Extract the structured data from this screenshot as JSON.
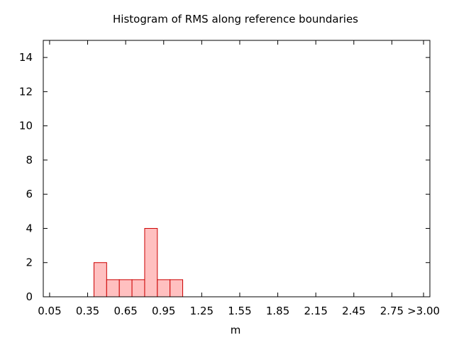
{
  "chart_data": {
    "type": "bar",
    "title": "Histogram of RMS along reference boundaries",
    "xlabel": "m",
    "ylabel": "",
    "bin_width": 0.1,
    "xlim": [
      0.0,
      3.05
    ],
    "ylim": [
      0,
      15
    ],
    "x_ticks": [
      {
        "value": 0.05,
        "label": "0.05"
      },
      {
        "value": 0.35,
        "label": "0.35"
      },
      {
        "value": 0.65,
        "label": "0.65"
      },
      {
        "value": 0.95,
        "label": "0.95"
      },
      {
        "value": 1.25,
        "label": "1.25"
      },
      {
        "value": 1.55,
        "label": "1.55"
      },
      {
        "value": 1.85,
        "label": "1.85"
      },
      {
        "value": 2.15,
        "label": "2.15"
      },
      {
        "value": 2.45,
        "label": "2.45"
      },
      {
        "value": 2.75,
        "label": "2.75"
      },
      {
        "value": 3.0,
        "label": ">3.00"
      }
    ],
    "y_ticks": [
      {
        "value": 0,
        "label": "0"
      },
      {
        "value": 2,
        "label": "2"
      },
      {
        "value": 4,
        "label": "4"
      },
      {
        "value": 6,
        "label": "6"
      },
      {
        "value": 8,
        "label": "8"
      },
      {
        "value": 10,
        "label": "10"
      },
      {
        "value": 12,
        "label": "12"
      },
      {
        "value": 14,
        "label": "14"
      }
    ],
    "bins": [
      {
        "start": 0.4,
        "value": 2
      },
      {
        "start": 0.5,
        "value": 1
      },
      {
        "start": 0.6,
        "value": 1
      },
      {
        "start": 0.7,
        "value": 1
      },
      {
        "start": 0.8,
        "value": 4
      },
      {
        "start": 0.9,
        "value": 1
      },
      {
        "start": 1.0,
        "value": 1
      }
    ],
    "grid": false,
    "legend": "none",
    "colors": {
      "bar_fill": "#ffc0c0",
      "bar_stroke": "#cc0000",
      "axis": "#000000"
    }
  }
}
